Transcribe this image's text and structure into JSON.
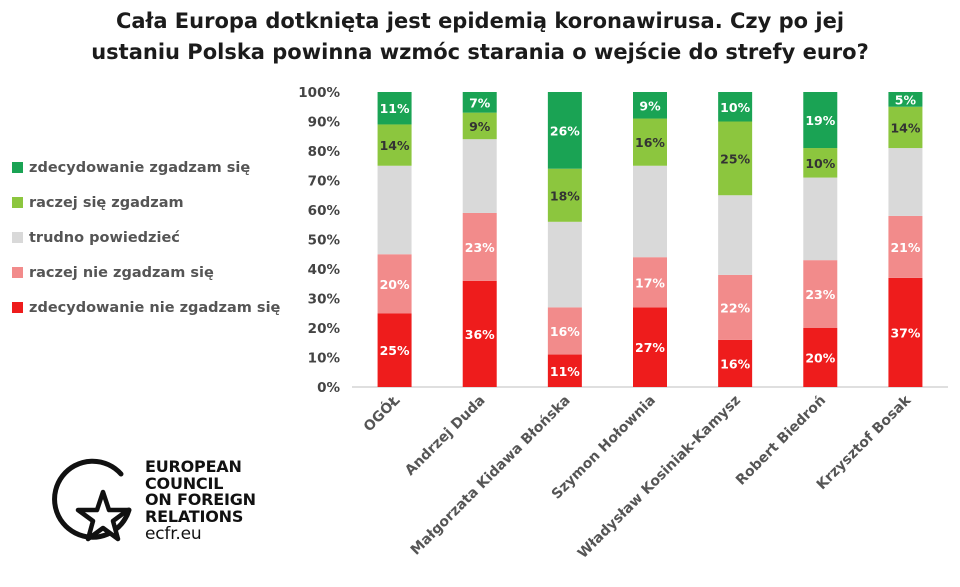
{
  "title": {
    "line1": "Cała Europa dotknięta jest epidemią koronawirusa. Czy po jej",
    "line2": "ustaniu Polska powinna wzmóc starania o wejście do strefy euro?"
  },
  "legend": [
    {
      "label": "zdecydowanie zgadzam się",
      "color": "#1aa354"
    },
    {
      "label": "raczej się zgadzam",
      "color": "#8cc63e"
    },
    {
      "label": "trudno powiedzieć",
      "color": "#d9d9d9"
    },
    {
      "label": "raczej nie zgadzam się",
      "color": "#f28b8b"
    },
    {
      "label": "zdecydowanie nie zgadzam się",
      "color": "#ee1c1c"
    }
  ],
  "logo": {
    "line1": "EUROPEAN",
    "line2": "COUNCIL",
    "line3": "ON FOREIGN",
    "line4": "RELATIONS",
    "url": "ecfr.eu"
  },
  "chart_data": {
    "type": "bar",
    "stacked": true,
    "normalized": true,
    "categories": [
      "OGÓŁ",
      "Andrzej Duda",
      "Małgorzata Kidawa Błońska",
      "Szymon Hołownia",
      "Władysław Kosiniak-Kamysz",
      "Robert Biedroń",
      "Krzysztof Bosak"
    ],
    "series": [
      {
        "name": "zdecydowanie nie zgadzam się",
        "color": "#ee1c1c",
        "label_color": "#ffffff",
        "values": [
          25,
          36,
          11,
          27,
          16,
          20,
          37
        ],
        "labels": [
          "25%",
          "36%",
          "11%",
          "27%",
          "16%",
          "20%",
          "37%"
        ]
      },
      {
        "name": "raczej nie zgadzam się",
        "color": "#f28b8b",
        "label_color": "#ffffff",
        "values": [
          20,
          23,
          16,
          17,
          22,
          23,
          21
        ],
        "labels": [
          "20%",
          "23%",
          "16%",
          "17%",
          "22%",
          "23%",
          "21%"
        ]
      },
      {
        "name": "trudno powiedzieć",
        "color": "#d9d9d9",
        "label_color": "#ffffff",
        "values": [
          30,
          25,
          29,
          31,
          27,
          28,
          23
        ],
        "labels": [
          "",
          "",
          "",
          "",
          "",
          "",
          ""
        ]
      },
      {
        "name": "raczej się zgadzam",
        "color": "#8cc63e",
        "label_color": "#333333",
        "values": [
          14,
          9,
          18,
          16,
          25,
          10,
          14
        ],
        "labels": [
          "14%",
          "9%",
          "18%",
          "16%",
          "25%",
          "10%",
          "14%"
        ]
      },
      {
        "name": "zdecydowanie zgadzam się",
        "color": "#1aa354",
        "label_color": "#ffffff",
        "values": [
          11,
          7,
          26,
          9,
          10,
          19,
          5
        ],
        "labels": [
          "11%",
          "7%",
          "26%",
          "9%",
          "10%",
          "19%",
          "5%"
        ]
      }
    ],
    "yticks": [
      "0%",
      "10%",
      "20%",
      "30%",
      "40%",
      "50%",
      "60%",
      "70%",
      "80%",
      "90%",
      "100%"
    ],
    "ylim": [
      0,
      100
    ],
    "grid": false,
    "legend_position": "left"
  }
}
